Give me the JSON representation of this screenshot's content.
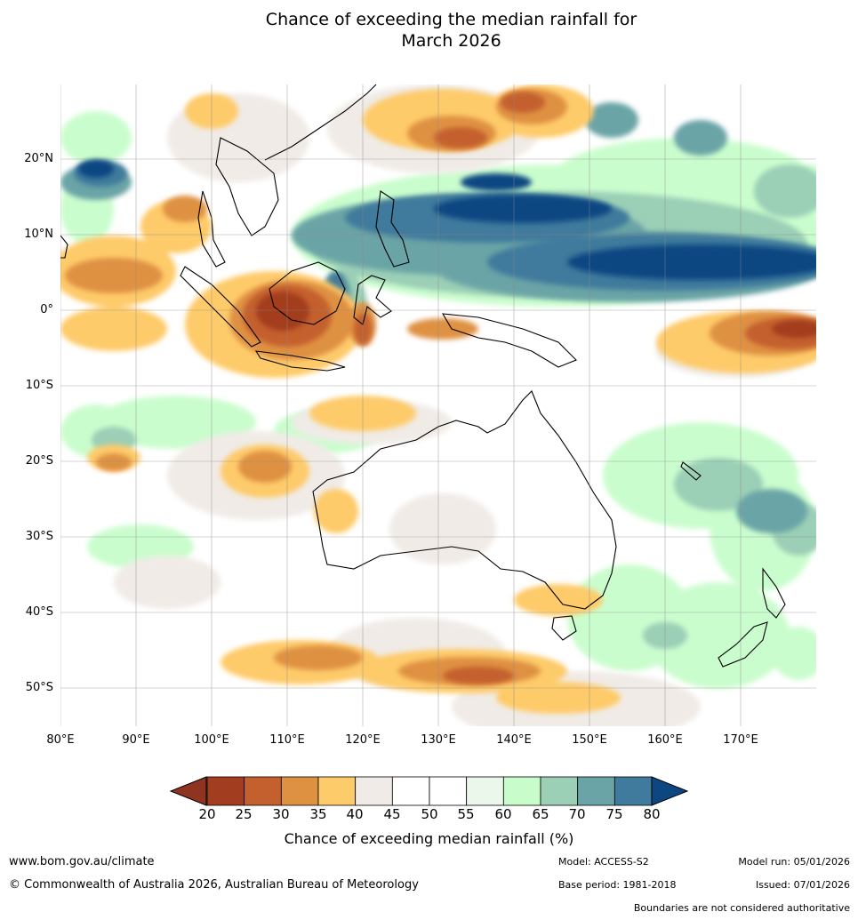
{
  "title_line1": "Chance of exceeding the median rainfall for",
  "title_line2": "March 2026",
  "lat_labels": [
    "20°N",
    "10°N",
    "0°",
    "10°S",
    "20°S",
    "30°S",
    "40°S",
    "50°S"
  ],
  "lon_labels": [
    "80°E",
    "90°E",
    "100°E",
    "110°E",
    "120°E",
    "130°E",
    "140°E",
    "150°E",
    "160°E",
    "170°E"
  ],
  "colorbar": {
    "ticks": [
      "20",
      "25",
      "30",
      "35",
      "40",
      "45",
      "50",
      "55",
      "60",
      "65",
      "70",
      "75",
      "80"
    ],
    "colors": [
      "#a33d1f",
      "#c4602e",
      "#df9142",
      "#fecb6a",
      "#f0ebe6",
      "#ffffff",
      "#ffffff",
      "#eaf7ea",
      "#c8fdcb",
      "#9bcfb6",
      "#6ba4a6",
      "#407a9c"
    ],
    "under_color": "#8e3420",
    "over_color": "#0d4782",
    "label": "Chance of exceeding median rainfall (%)"
  },
  "footer": {
    "website": "www.bom.gov.au/climate",
    "copyright": "© Commonwealth of Australia 2026, Australian Bureau of Meteorology",
    "model": "Model: ACCESS-S2",
    "base_period": "Base period: 1981-2018",
    "model_run": "Model run: 05/01/2026",
    "issued": "Issued: 07/01/2026",
    "disclaimer": "Boundaries are not considered authoritative"
  }
}
